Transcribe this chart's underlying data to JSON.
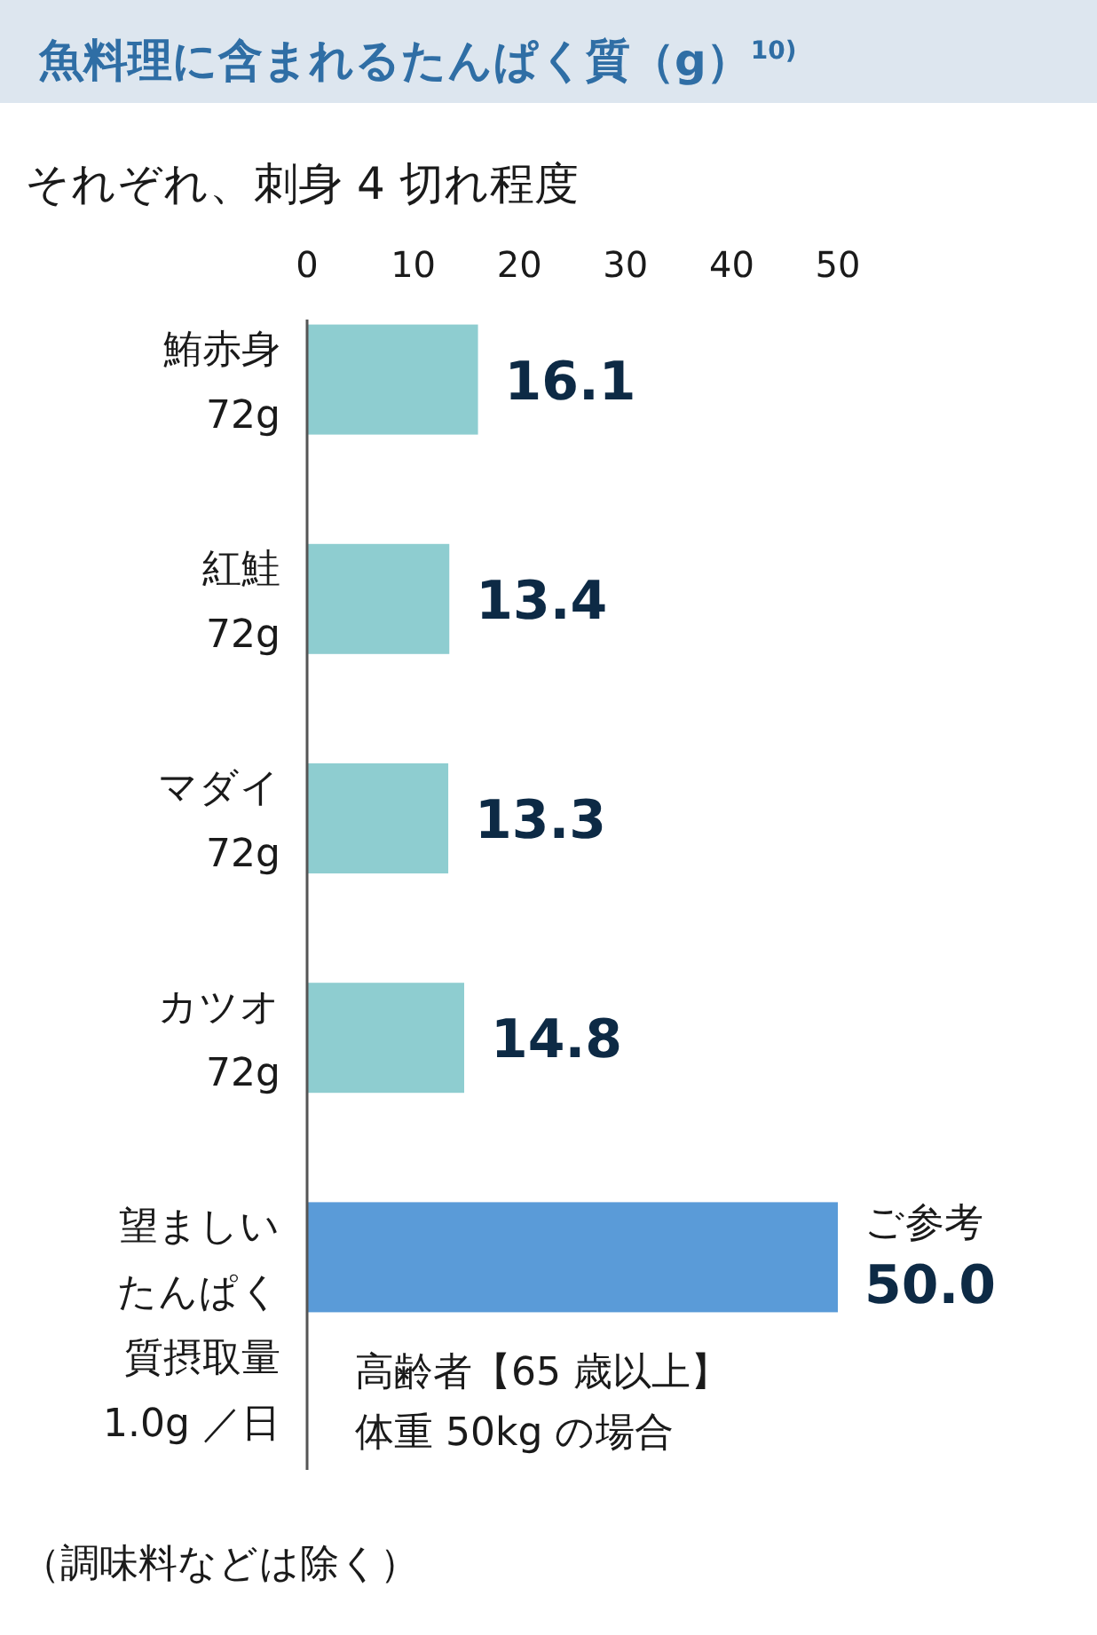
{
  "chart_data": {
    "type": "bar",
    "orientation": "horizontal",
    "title": "魚料理に含まれるたんぱく質（g）$^{10)}$",
    "subtitle": "それぞれ、刺身 4 切れ程度",
    "categories": [
      "鮪赤身\n72g",
      "紅鮭\n72g",
      "マダイ\n72g",
      "カツオ\n72g",
      "望ましいたんぱく質摂取量\n1.0g ／日"
    ],
    "values": [
      16.1,
      13.4,
      13.3,
      14.8,
      50.0
    ],
    "colors": [
      "#8ecdd0",
      "#8ecdd0",
      "#8ecdd0",
      "#8ecdd0",
      "#5a9bd8"
    ],
    "value_labels": [
      "16.1",
      "13.4",
      "13.3",
      "14.8",
      "50.0"
    ],
    "xlim": [
      0,
      50
    ],
    "xticks": [
      0,
      10,
      20,
      30,
      40,
      50
    ],
    "grid": false,
    "annotations": [
      "ご参考",
      "高齢者【65 歳以上】",
      "体重 50kg の場合",
      "（調味料などは除く）"
    ]
  }
}
